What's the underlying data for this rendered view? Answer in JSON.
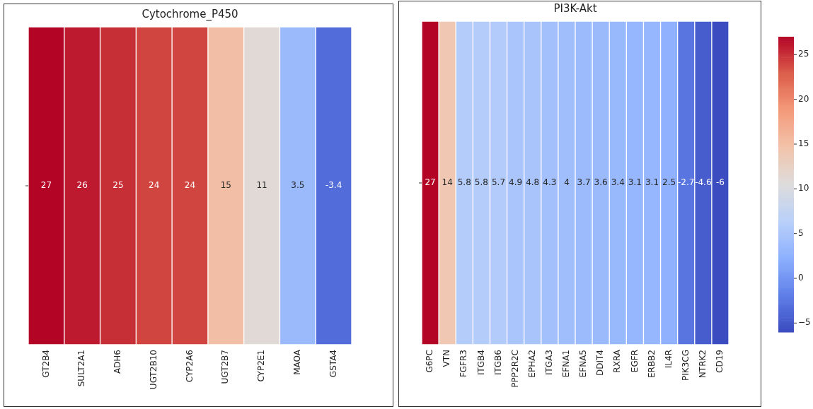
{
  "chart_data": [
    {
      "type": "heatmap",
      "title": "Cytochrome_P450",
      "categories": [
        "GT2B4",
        "SULT2A1",
        "ADH6",
        "UGT2B10",
        "CYP2A6",
        "UGT2B7",
        "CYP2E1",
        "MAOA",
        "GSTA4"
      ],
      "y_categories": [
        null
      ],
      "cells": [
        [
          27,
          26,
          25,
          24,
          24,
          15,
          11,
          3.5,
          -3.4
        ]
      ],
      "data_labels": true
    },
    {
      "type": "heatmap",
      "title": "PI3K-Akt",
      "categories": [
        "G6PC",
        "VTN",
        "FGFR3",
        "ITGB4",
        "ITGB6",
        "PPP2R2C",
        "EPHA2",
        "ITGA3",
        "EFNA1",
        "EFNA5",
        "DDIT4",
        "RXRA",
        "EGFR",
        "ERBB2",
        "IL4R",
        "PIK3CG",
        "NTRK2",
        "CD19"
      ],
      "y_categories": [
        null
      ],
      "cells": [
        [
          27,
          14,
          5.8,
          5.8,
          5.7,
          4.9,
          4.8,
          4.3,
          4,
          3.7,
          3.6,
          3.4,
          3.1,
          3.1,
          2.5,
          -2.7,
          -4.6,
          -6
        ]
      ],
      "clim": [
        -6,
        27
      ],
      "cticks": [
        -5,
        0,
        5,
        10,
        15,
        20,
        25
      ],
      "data_labels": true
    }
  ]
}
